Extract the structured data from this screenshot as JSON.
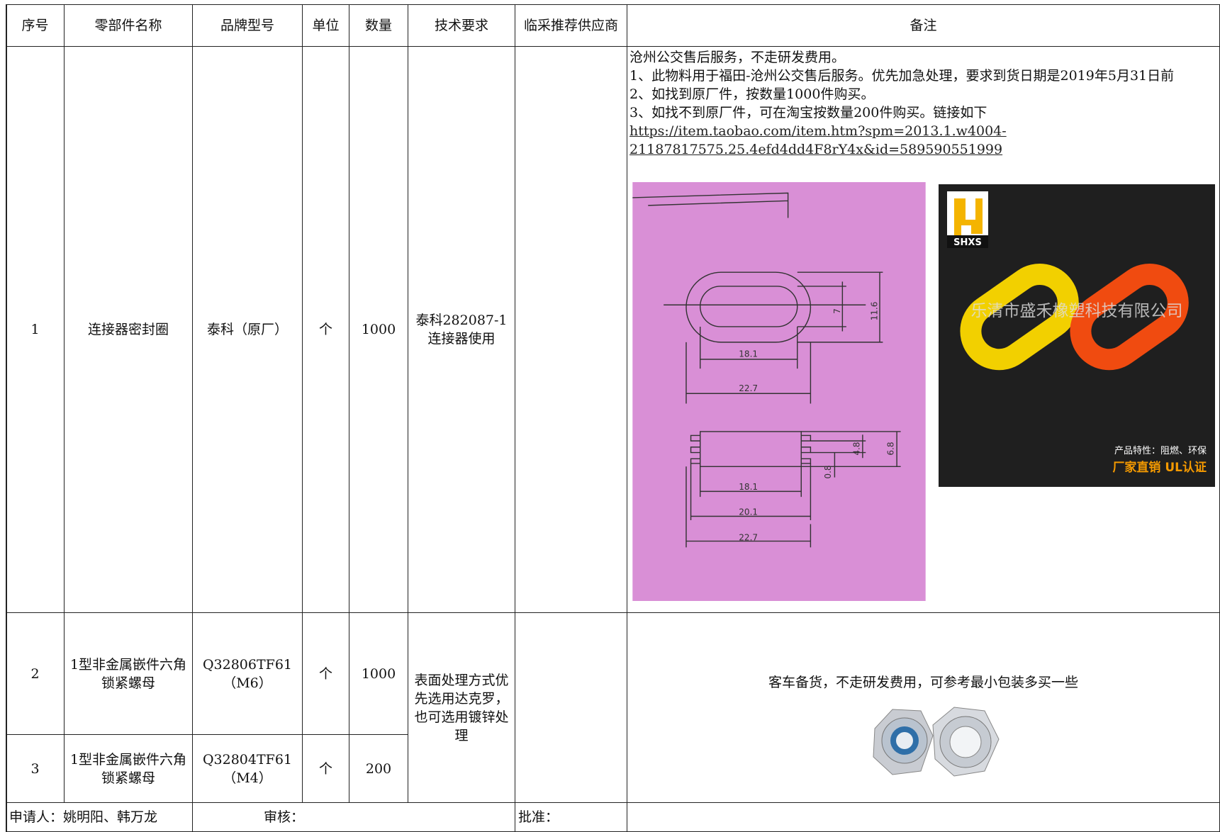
{
  "table": {
    "header": [
      "序号",
      "零部件名称",
      "品牌型号",
      "单位",
      "数量",
      "技术要求",
      "临采推荐供应商",
      "备注"
    ],
    "rows": [
      {
        "no": "1",
        "name": "连接器密封圈",
        "model": "泰科（原厂）",
        "unit": "个",
        "qty": "1000"
      },
      {
        "no": "2",
        "name": "1型非金属嵌件六角锁紧螺母",
        "model": "Q32806TF61（M6）",
        "unit": "个",
        "qty": "1000"
      },
      {
        "no": "3",
        "name": "1型非金属嵌件六角锁紧螺母",
        "model": "Q32804TF61（M4）",
        "unit": "个",
        "qty": "200"
      }
    ],
    "groups": [
      {
        "tech": "泰科282087-1连接器使用",
        "remarks": [
          "沧州公交售后服务，不走研发费用。",
          "1、此物料用于福田-沧州公交售后服务。优先加急处理，要求到货日期是2019年5月31日前",
          "2、如找到原厂件，按数量1000件购买。",
          "3、如找不到原厂件，可在淘宝按数量200件购买。链接如下"
        ],
        "link": "https://item.taobao.com/item.htm?spm=2013.1.w4004-21187817575.25.4efd4dd4F8rY4x&id=589590551999"
      },
      {
        "tech": "表面处理方式优先选用达克罗，也可选用镀锌处理",
        "remarks": [
          "客车备货，不走研发费用，可参考最小包装多买一些"
        ]
      }
    ],
    "footer": {
      "applicant": "申请人：姚明阳、韩万龙",
      "review": "审核：",
      "approve": "批准："
    }
  },
  "drawing": {
    "labels": [
      "7",
      "11.6",
      "18.1",
      "22.7",
      "18.1",
      "20.1",
      "22.7",
      "4.8",
      "6.8",
      "0.8"
    ]
  },
  "product_photo": {
    "logo": "SHXS",
    "watermark": "乐清市盛禾橡塑科技有限公司",
    "feature": "产品特性：阻燃、环保",
    "slogan": "厂家直销 UL认证"
  }
}
